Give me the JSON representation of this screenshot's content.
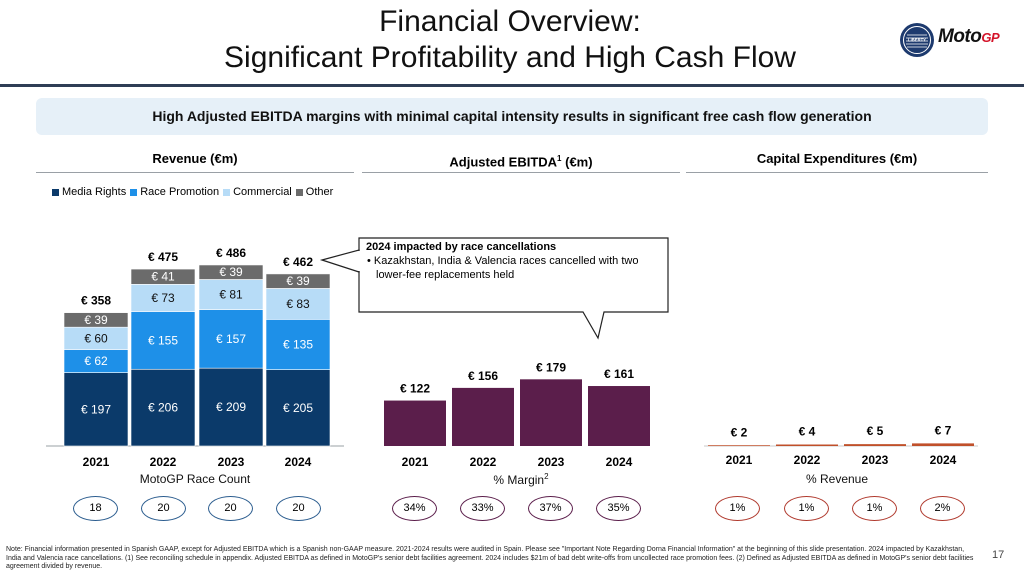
{
  "header": {
    "title_line1": "Financial Overview:",
    "title_line2": "Significant Profitability and High Cash Flow",
    "logo_text_moto": "Moto",
    "logo_text_gp": "GP",
    "liberty_logo_text": "LIBERTY"
  },
  "banner": "High Adjusted EBITDA margins with minimal capital intensity results in significant free cash flow generation",
  "panels": {
    "revenue": {
      "title": "Revenue (€m)",
      "sub_label": "MotoGP Race Count"
    },
    "ebitda": {
      "title": "Adjusted EBITDA",
      "title_sup": "1",
      "title_suffix": " (€m)",
      "sub_label": "% Margin",
      "sub_label_sup": "2"
    },
    "capex": {
      "title": "Capital Expenditures (€m)",
      "sub_label": "% Revenue"
    }
  },
  "legend": [
    {
      "label": "Media Rights",
      "color": "#0b3a6a"
    },
    {
      "label": "Race Promotion",
      "color": "#1e90e8"
    },
    {
      "label": "Commercial",
      "color": "#b7dcf7"
    },
    {
      "label": "Other",
      "color": "#6b6b6b"
    }
  ],
  "callout": {
    "heading": "2024 impacted by race cancellations",
    "bullet": "• Kazakhstan, India & Valencia races cancelled with two lower-fee replacements held"
  },
  "chart_data": [
    {
      "type": "bar",
      "title": "Revenue (€m)",
      "stacked": true,
      "categories": [
        "2021",
        "2022",
        "2023",
        "2024"
      ],
      "series": [
        {
          "name": "Media Rights",
          "values": [
            197,
            206,
            209,
            205
          ],
          "labels": [
            "€ 197",
            "€ 206",
            "€ 209",
            "€ 205"
          ]
        },
        {
          "name": "Race Promotion",
          "values": [
            62,
            155,
            157,
            135
          ],
          "labels": [
            "€ 62",
            "€ 155",
            "€ 157",
            "€ 135"
          ]
        },
        {
          "name": "Commercial",
          "values": [
            60,
            73,
            81,
            83
          ],
          "labels": [
            "€ 60",
            "€ 73",
            "€ 81",
            "€ 83"
          ]
        },
        {
          "name": "Other",
          "values": [
            39,
            41,
            39,
            39
          ],
          "labels": [
            "€ 39",
            "€ 41",
            "€ 39",
            "€ 39"
          ]
        }
      ],
      "totals": [
        358,
        475,
        486,
        462
      ],
      "total_labels": [
        "€ 358",
        "€ 475",
        "€ 486",
        "€ 462"
      ],
      "footer_values": [
        "18",
        "20",
        "20",
        "20"
      ],
      "footer_label": "MotoGP Race Count"
    },
    {
      "type": "bar",
      "title": "Adjusted EBITDA (€m)",
      "categories": [
        "2021",
        "2022",
        "2023",
        "2024"
      ],
      "values": [
        122,
        156,
        179,
        161
      ],
      "labels": [
        "€ 122",
        "€ 156",
        "€ 179",
        "€ 161"
      ],
      "color": "#5b1e4b",
      "footer_values": [
        "34%",
        "33%",
        "37%",
        "35%"
      ],
      "footer_label": "% Margin"
    },
    {
      "type": "bar",
      "title": "Capital Expenditures (€m)",
      "categories": [
        "2021",
        "2022",
        "2023",
        "2024"
      ],
      "values": [
        2,
        4,
        5,
        7
      ],
      "labels": [
        "€ 2",
        "€ 4",
        "€ 5",
        "€ 7"
      ],
      "color": "#c0502a",
      "footer_values": [
        "1%",
        "1%",
        "1%",
        "2%"
      ],
      "footer_label": "% Revenue"
    }
  ],
  "colors": {
    "media_rights": "#0b3a6a",
    "race_promotion": "#1e90e8",
    "commercial": "#b7dcf7",
    "other": "#6b6b6b",
    "ebitda": "#5b1e4b",
    "capex": "#c0502a",
    "pill_revenue": "#2c5d8f",
    "pill_ebitda": "#5b1e4b",
    "pill_capex": "#b03a2e"
  },
  "footnote": "Note: Financial information presented in Spanish GAAP, except for Adjusted EBITDA which is a Spanish non-GAAP measure. 2021-2024 results were audited in Spain. Please see \"Important Note Regarding Dorna Financial Information\" at the beginning of this slide presentation. 2024 impacted by Kazakhstan, India and Valencia race cancellations. (1) See reconciling schedule in appendix. Adjusted EBITDA as defined in MotoGP's senior debt facilities agreement. 2024 includes $21m of bad debt write-offs from uncollected race promotion fees. (2) Defined as Adjusted EBITDA as defined in MotoGP's senior debt facilities agreement divided by revenue.",
  "page_number": "17"
}
